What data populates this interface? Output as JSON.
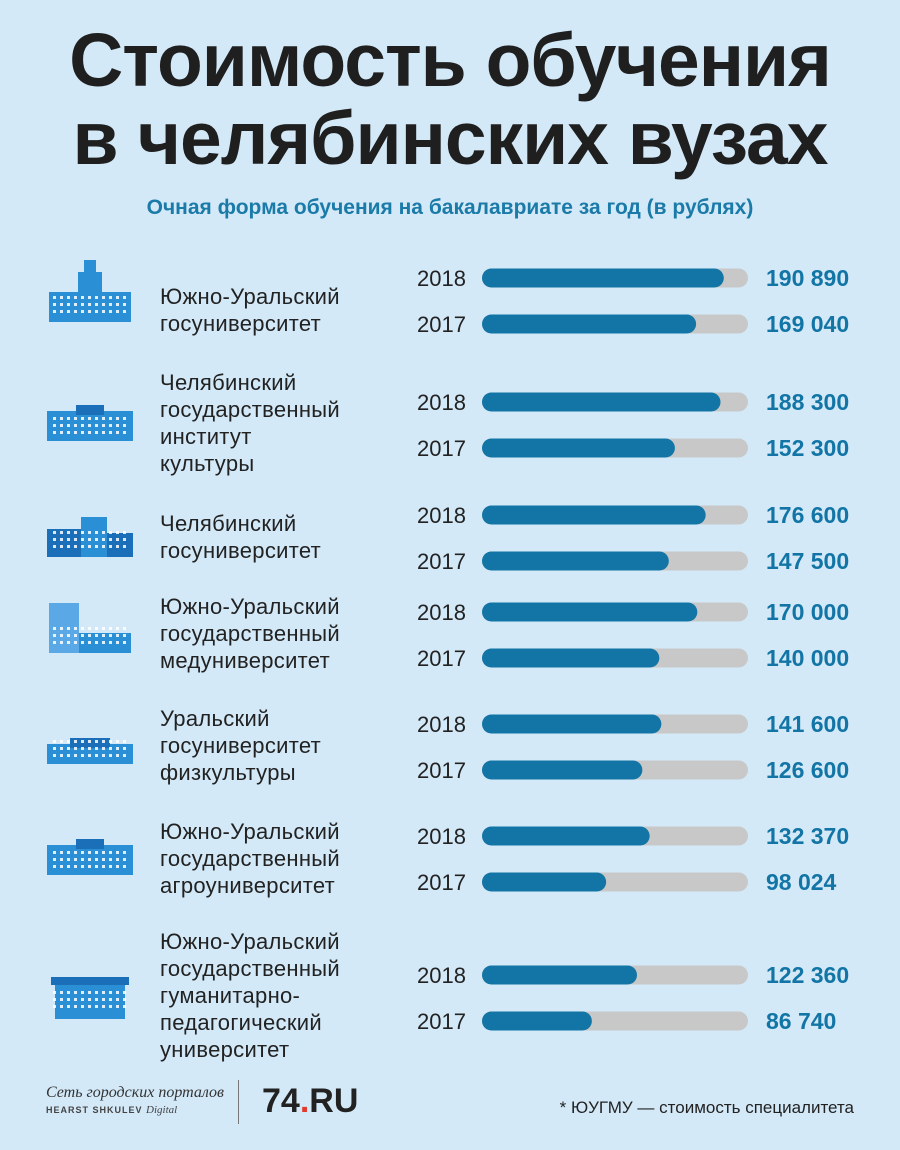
{
  "title_line1": "Стоимость обучения",
  "title_line2": "в челябинских вузах",
  "subtitle": "Очная форма обучения на бакалавриате за год (в рублях)",
  "colors": {
    "background": "#d3e9f8",
    "bar_fill": "#1275a5",
    "bar_track": "#c8c8c8",
    "value_text": "#1275a5",
    "subtitle": "#1a7aa8"
  },
  "chart_data": {
    "type": "bar",
    "orientation": "horizontal",
    "title": "Стоимость обучения в челябинских вузах",
    "subtitle": "Очная форма обучения на бакалавриате за год (в рублях)",
    "series_names": [
      "2018",
      "2017"
    ],
    "xlim": [
      0,
      210000
    ],
    "grid": false,
    "categories": [
      {
        "name": [
          "Южно-Уральский",
          "госуниверситет"
        ],
        "icon": "building-icon",
        "v2018": 190890,
        "v2017": 169040,
        "label2018": "190 890",
        "label2017": "169 040"
      },
      {
        "name": [
          "Челябинский",
          "государственный",
          "институт",
          "культуры"
        ],
        "icon": "building-icon",
        "v2018": 188300,
        "v2017": 152300,
        "label2018": "188 300",
        "label2017": "152 300"
      },
      {
        "name": [
          "Челябинский",
          "госуниверситет"
        ],
        "icon": "building-icon",
        "v2018": 176600,
        "v2017": 147500,
        "label2018": "176 600",
        "label2017": "147 500"
      },
      {
        "name": [
          "Южно-Уральский",
          "государственный",
          "медуниверситет"
        ],
        "icon": "building-icon",
        "v2018": 170000,
        "v2017": 140000,
        "label2018": "170 000",
        "label2017": "140 000"
      },
      {
        "name": [
          "Уральский",
          "госуниверситет",
          "физкультуры"
        ],
        "icon": "building-icon",
        "v2018": 141600,
        "v2017": 126600,
        "label2018": "141 600",
        "label2017": "126 600"
      },
      {
        "name": [
          "Южно-Уральский",
          "государственный",
          "агроуниверситет"
        ],
        "icon": "building-icon",
        "v2018": 132370,
        "v2017": 98024,
        "label2018": "132 370",
        "label2017": "98 024"
      },
      {
        "name": [
          "Южно-Уральский",
          "государственный",
          "гуманитарно-",
          "педагогический",
          "университет"
        ],
        "icon": "building-icon",
        "v2018": 122360,
        "v2017": 86740,
        "label2018": "122 360",
        "label2017": "86 740"
      }
    ]
  },
  "footer": {
    "network": "Сеть городских порталов",
    "network_sub_bold": "HEARST SHKULEV",
    "network_sub_italic": "Digital",
    "brand_number": "74",
    "brand_dot": ".",
    "brand_suffix": "RU",
    "footnote": "* ЮУГМУ — стоимость специалитета"
  }
}
